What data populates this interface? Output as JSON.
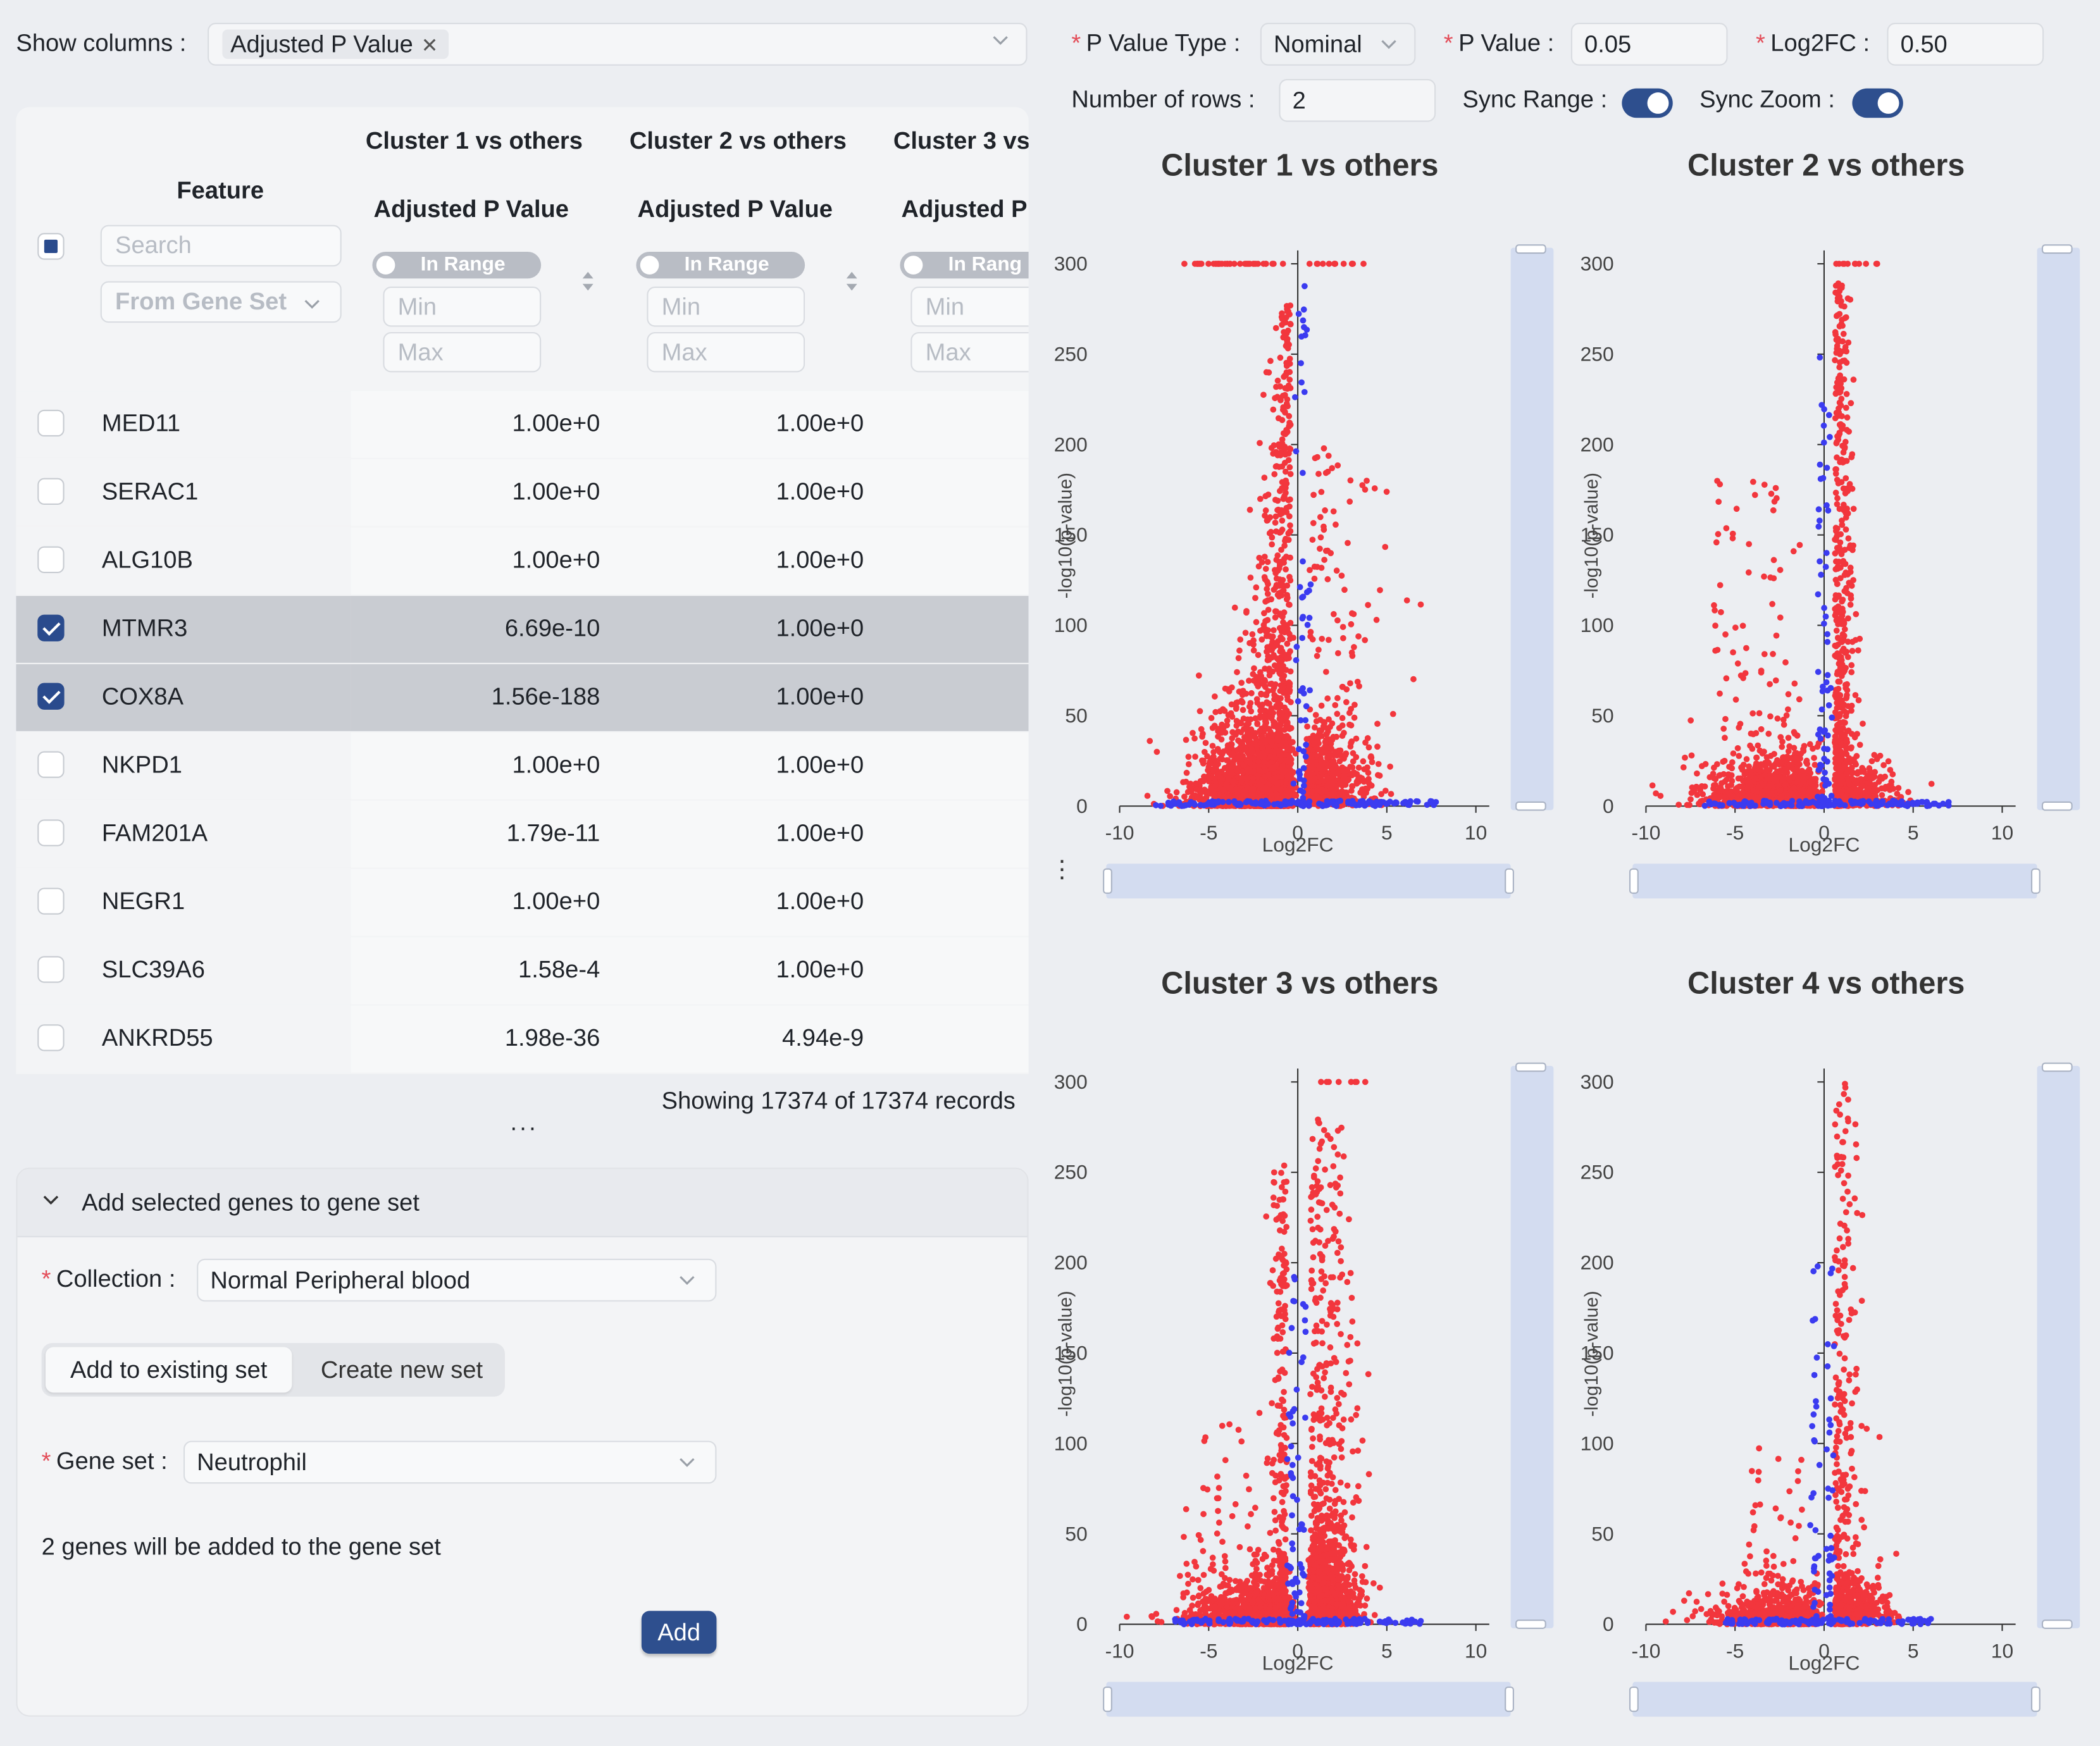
{
  "toolbar": {
    "show_columns_label": "Show columns :",
    "show_columns_tag": "Adjusted P Value",
    "p_value_type_label": "P Value Type :",
    "p_value_type": "Nominal",
    "p_value_label": "P Value :",
    "p_value": "0.05",
    "log2fc_label": "Log2FC :",
    "log2fc": "0.50",
    "rows_label": "Number of rows :",
    "rows": "2",
    "sync_range_label": "Sync Range :",
    "sync_zoom_label": "Sync Zoom :"
  },
  "table": {
    "feature_header": "Feature",
    "search_placeholder": "Search",
    "gene_set_select": "From Gene Set",
    "cluster_headers": [
      "Cluster 1 vs others",
      "Cluster 2 vs others",
      "Cluster 3 vs"
    ],
    "sub_header": "Adjusted P Value",
    "sub_header_cut": "Adjusted P",
    "in_range": "In Range",
    "in_range_cut": "In Rang",
    "min_placeholder": "Min",
    "max_placeholder": "Max",
    "rows": [
      {
        "name": "MED11",
        "v1": "1.00e+0",
        "v2": "1.00e+0",
        "checked": false
      },
      {
        "name": "SERAC1",
        "v1": "1.00e+0",
        "v2": "1.00e+0",
        "checked": false
      },
      {
        "name": "ALG10B",
        "v1": "1.00e+0",
        "v2": "1.00e+0",
        "checked": false
      },
      {
        "name": "MTMR3",
        "v1": "6.69e-10",
        "v2": "1.00e+0",
        "checked": true
      },
      {
        "name": "COX8A",
        "v1": "1.56e-188",
        "v2": "1.00e+0",
        "checked": true
      },
      {
        "name": "NKPD1",
        "v1": "1.00e+0",
        "v2": "1.00e+0",
        "checked": false
      },
      {
        "name": "FAM201A",
        "v1": "1.79e-11",
        "v2": "1.00e+0",
        "checked": false
      },
      {
        "name": "NEGR1",
        "v1": "1.00e+0",
        "v2": "1.00e+0",
        "checked": false
      },
      {
        "name": "SLC39A6",
        "v1": "1.58e-4",
        "v2": "1.00e+0",
        "checked": false
      },
      {
        "name": "ANKRD55",
        "v1": "1.98e-36",
        "v2": "4.94e-9",
        "checked": false
      }
    ],
    "showing": "Showing 17374 of 17374 records",
    "more": "..."
  },
  "gene_set_panel": {
    "title": "Add selected genes to gene set",
    "collection_label": "Collection :",
    "collection": "Normal Peripheral blood",
    "mode_existing": "Add to existing set",
    "mode_new": "Create new set",
    "gene_set_label": "Gene set :",
    "gene_set": "Neutrophil",
    "note": "2 genes will be added to the gene set",
    "add_button": "Add"
  },
  "colors": {
    "significant": "#f2363d",
    "nonsignificant": "#3b3bf0",
    "accent": "#2e4f8e"
  },
  "chart_data": [
    {
      "type": "scatter",
      "title": "Cluster 1 vs others",
      "xlabel": "Log2FC",
      "ylabel": "-log10(p-value)",
      "xlim": [
        -10,
        10
      ],
      "ylim": [
        0,
        300
      ],
      "xticks": [
        -10,
        -5,
        0,
        5,
        10
      ],
      "yticks": [
        0,
        50,
        100,
        150,
        200,
        250,
        300
      ],
      "series": [
        {
          "name": "significant",
          "profile": "c1"
        },
        {
          "name": "not significant"
        }
      ]
    },
    {
      "type": "scatter",
      "title": "Cluster 2 vs others",
      "xlabel": "Log2FC",
      "ylabel": "-log10(p-value)",
      "xlim": [
        -10,
        10
      ],
      "ylim": [
        0,
        300
      ],
      "xticks": [
        -10,
        -5,
        0,
        5,
        10
      ],
      "yticks": [
        0,
        50,
        100,
        150,
        200,
        250,
        300
      ],
      "series": [
        {
          "name": "significant",
          "profile": "c2"
        },
        {
          "name": "not significant"
        }
      ]
    },
    {
      "type": "scatter",
      "title": "Cluster 3 vs others",
      "xlabel": "Log2FC",
      "ylabel": "-log10(p-value)",
      "xlim": [
        -10,
        10
      ],
      "ylim": [
        0,
        300
      ],
      "xticks": [
        -10,
        -5,
        0,
        5,
        10
      ],
      "yticks": [
        0,
        50,
        100,
        150,
        200,
        250,
        300
      ],
      "series": [
        {
          "name": "significant",
          "profile": "c3"
        },
        {
          "name": "not significant"
        }
      ]
    },
    {
      "type": "scatter",
      "title": "Cluster 4 vs others",
      "xlabel": "Log2FC",
      "ylabel": "-log10(p-value)",
      "xlim": [
        -10,
        10
      ],
      "ylim": [
        0,
        300
      ],
      "xticks": [
        -10,
        -5,
        0,
        5,
        10
      ],
      "yticks": [
        0,
        50,
        100,
        150,
        200,
        250,
        300
      ],
      "series": [
        {
          "name": "significant",
          "profile": "c4"
        },
        {
          "name": "not significant"
        }
      ]
    }
  ]
}
